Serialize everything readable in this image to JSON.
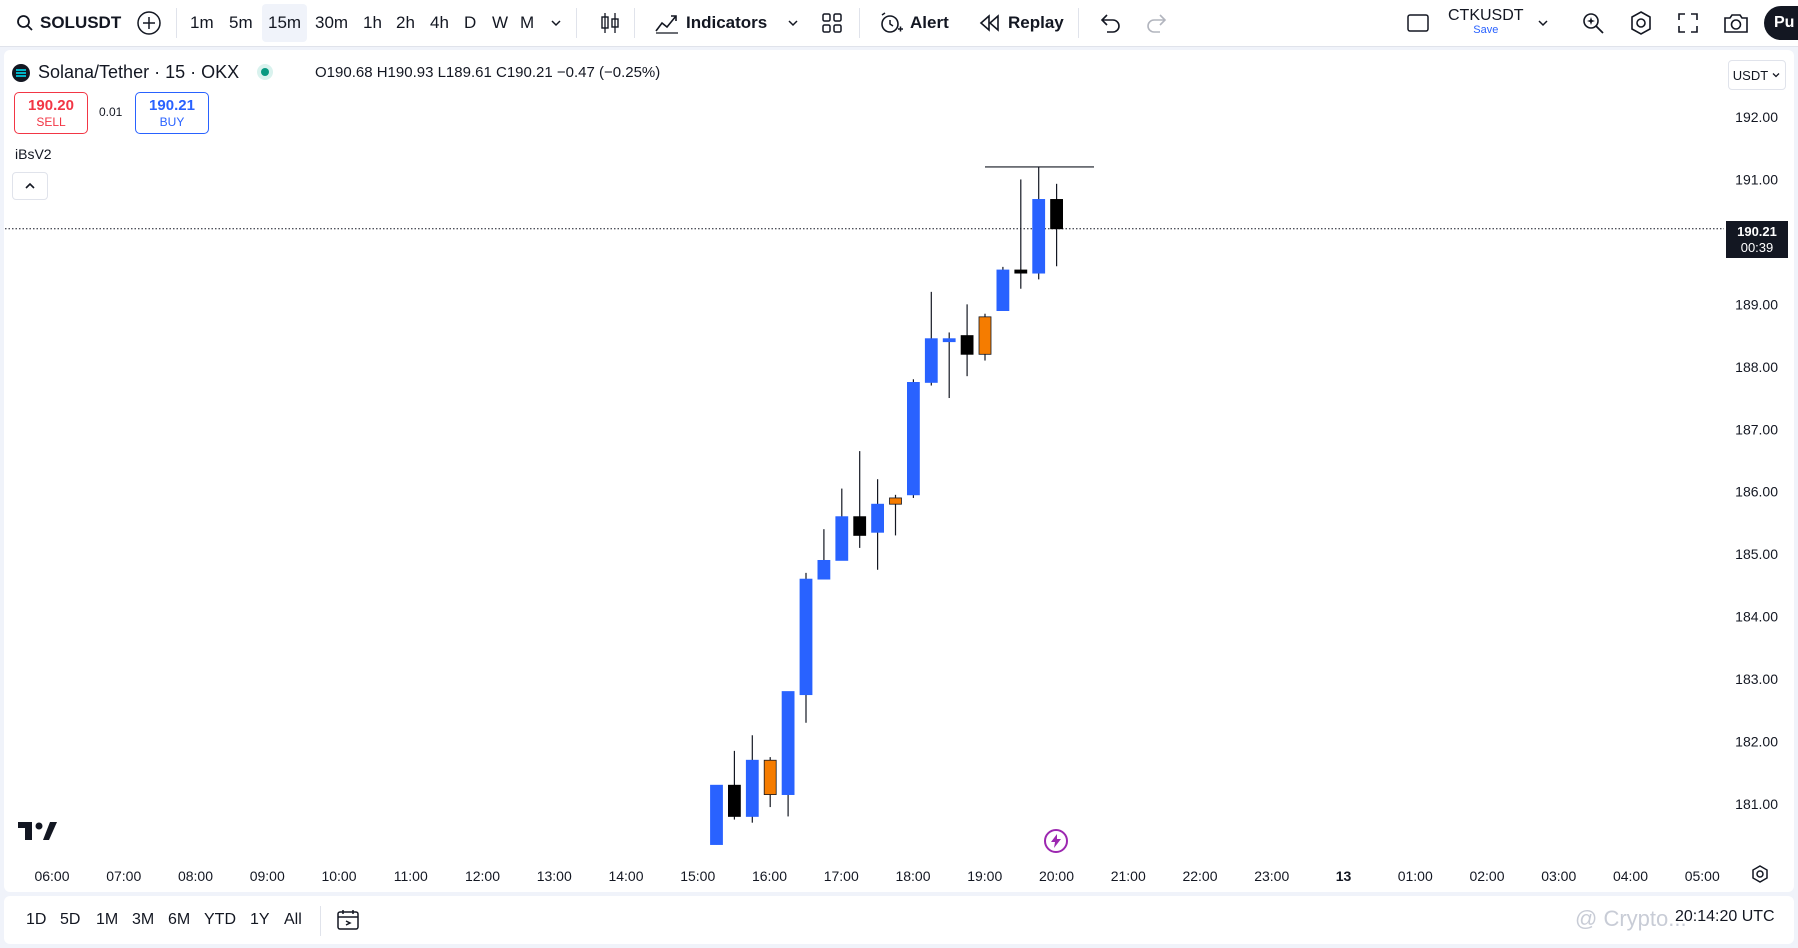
{
  "toolbar": {
    "symbol": "SOLUSDT",
    "intervals": [
      "1m",
      "5m",
      "15m",
      "30m",
      "1h",
      "2h",
      "4h",
      "D",
      "W",
      "M"
    ],
    "active_interval": "15m",
    "indicators_label": "Indicators",
    "alert_label": "Alert",
    "replay_label": "Replay",
    "layout_name": "CTKUSDT",
    "save_label": "Save",
    "publish_label": "Pu"
  },
  "legend": {
    "title": "Solana/Tether · 15 · OKX",
    "ohlc": "O190.68  H190.93  L189.61  C190.21  −0.47 (−0.25%)",
    "sell_price": "190.20",
    "sell_label": "SELL",
    "spread": "0.01",
    "buy_price": "190.21",
    "buy_label": "BUY",
    "indicator": "iBsV2",
    "currency": "USDT"
  },
  "price_tag": {
    "price": "190.21",
    "countdown": "00:39"
  },
  "bottom": {
    "ranges": [
      "1D",
      "5D",
      "1M",
      "3M",
      "6M",
      "YTD",
      "1Y",
      "All"
    ],
    "clock": "20:14:20 UTC",
    "watermark": "@ Crypto..."
  },
  "colors": {
    "up": "#2962ff",
    "down": "#000000",
    "doji": "#f57c00",
    "last_price_line": "#131722"
  },
  "chart_data": {
    "type": "candlestick",
    "symbol": "SOLUSDT",
    "interval": "15m",
    "yaxis": {
      "min": 180.3,
      "max": 192.4,
      "ticks": [
        181,
        182,
        183,
        184,
        185,
        186,
        187,
        188,
        189,
        190,
        191,
        192
      ]
    },
    "y_tick_labels": [
      "181.00",
      "182.00",
      "183.00",
      "184.00",
      "185.00",
      "186.00",
      "187.00",
      "188.00",
      "189.00",
      "190.00",
      "191.00",
      "192.00"
    ],
    "x_tick_labels": [
      "06:00",
      "07:00",
      "08:00",
      "09:00",
      "10:00",
      "11:00",
      "12:00",
      "13:00",
      "14:00",
      "15:00",
      "16:00",
      "17:00",
      "18:00",
      "19:00",
      "20:00",
      "21:00",
      "22:00",
      "23:00",
      "13",
      "01:00",
      "02:00",
      "03:00",
      "04:00",
      "05:00"
    ],
    "last_price": 190.21,
    "high_marker": 191.2,
    "candles": [
      {
        "t": "15:15",
        "o": 180.35,
        "h": 181.3,
        "l": 180.35,
        "c": 181.3,
        "dir": "up"
      },
      {
        "t": "15:30",
        "o": 181.3,
        "h": 181.85,
        "l": 180.75,
        "c": 180.8,
        "dir": "down"
      },
      {
        "t": "15:45",
        "o": 180.8,
        "h": 182.1,
        "l": 180.7,
        "c": 181.7,
        "dir": "up"
      },
      {
        "t": "16:00",
        "o": 181.7,
        "h": 181.75,
        "l": 180.95,
        "c": 181.15,
        "dir": "doji"
      },
      {
        "t": "16:15",
        "o": 181.15,
        "h": 182.8,
        "l": 180.8,
        "c": 182.8,
        "dir": "up"
      },
      {
        "t": "16:30",
        "o": 182.75,
        "h": 184.7,
        "l": 182.3,
        "c": 184.6,
        "dir": "up"
      },
      {
        "t": "16:45",
        "o": 184.6,
        "h": 185.4,
        "l": 184.6,
        "c": 184.9,
        "dir": "up"
      },
      {
        "t": "17:00",
        "o": 184.9,
        "h": 186.05,
        "l": 184.9,
        "c": 185.6,
        "dir": "up"
      },
      {
        "t": "17:15",
        "o": 185.6,
        "h": 186.65,
        "l": 185.1,
        "c": 185.3,
        "dir": "down"
      },
      {
        "t": "17:30",
        "o": 185.35,
        "h": 186.2,
        "l": 184.75,
        "c": 185.8,
        "dir": "up"
      },
      {
        "t": "17:45",
        "o": 185.8,
        "h": 185.95,
        "l": 185.3,
        "c": 185.9,
        "dir": "doji"
      },
      {
        "t": "18:00",
        "o": 185.95,
        "h": 187.8,
        "l": 185.9,
        "c": 187.75,
        "dir": "up"
      },
      {
        "t": "18:15",
        "o": 187.75,
        "h": 189.2,
        "l": 187.7,
        "c": 188.45,
        "dir": "up"
      },
      {
        "t": "18:30",
        "o": 188.45,
        "h": 188.55,
        "l": 187.5,
        "c": 188.45,
        "dir": "up"
      },
      {
        "t": "18:45",
        "o": 188.5,
        "h": 189.0,
        "l": 187.85,
        "c": 188.2,
        "dir": "down"
      },
      {
        "t": "19:00",
        "o": 188.2,
        "h": 188.85,
        "l": 188.1,
        "c": 188.8,
        "dir": "doji"
      },
      {
        "t": "19:15",
        "o": 188.9,
        "h": 189.6,
        "l": 188.9,
        "c": 189.55,
        "dir": "up"
      },
      {
        "t": "19:30",
        "o": 189.55,
        "h": 191.0,
        "l": 189.25,
        "c": 189.5,
        "dir": "down"
      },
      {
        "t": "19:45",
        "o": 189.5,
        "h": 191.2,
        "l": 189.4,
        "c": 190.68,
        "dir": "up"
      },
      {
        "t": "20:00",
        "o": 190.68,
        "h": 190.93,
        "l": 189.61,
        "c": 190.21,
        "dir": "down"
      }
    ]
  }
}
